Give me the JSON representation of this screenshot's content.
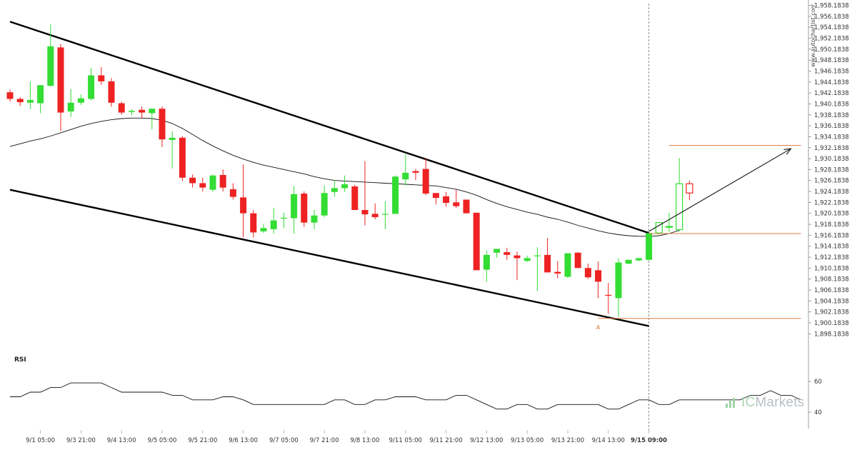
{
  "watermark": "www.autochartist.com",
  "brand": {
    "name": "ICMarkets",
    "prefix": "IC",
    "suffix": "Markets"
  },
  "rsi": {
    "title": "RSI",
    "levels": [
      "60",
      "40"
    ]
  },
  "colors": {
    "up": "#33dd33",
    "down": "#ee2222",
    "pattern_line": "#000000",
    "ma_line": "#111111",
    "level_line": "#e07b39",
    "current_marker": "#777777",
    "projection_arrow": "#111111"
  },
  "chart_data": {
    "type": "candlestick",
    "ylim": [
      1897.1838,
      1958.1838
    ],
    "y_ticks": [
      "1,958.1838",
      "1,956.1838",
      "1,954.1838",
      "1,952.1838",
      "1,950.1838",
      "1,948.1838",
      "1,946.1838",
      "1,944.1838",
      "1,942.1838",
      "1,940.1838",
      "1,938.1838",
      "1,936.1838",
      "1,934.1838",
      "1,932.1838",
      "1,930.1838",
      "1,928.1838",
      "1,926.1838",
      "1,924.1838",
      "1,922.1838",
      "1,920.1838",
      "1,918.1838",
      "1,916.1838",
      "1,914.1838",
      "1,912.1838",
      "1,910.1838",
      "1,908.1838",
      "1,906.1838",
      "1,904.1838",
      "1,902.1838",
      "1,900.1838",
      "1,898.1838"
    ],
    "x_labels": [
      "9/1 05:00",
      "9/3 21:00",
      "9/4 13:00",
      "9/5 05:00",
      "9/5 21:00",
      "9/6 13:00",
      "9/7 05:00",
      "9/7 21:00",
      "9/8 13:00",
      "9/11 05:00",
      "9/11 21:00",
      "9/12 13:00",
      "9/13 05:00",
      "9/13 21:00",
      "9/14 13:00",
      "9/15 09:00"
    ],
    "x_label_index": [
      3,
      7,
      11,
      15,
      19,
      23,
      27,
      31,
      35,
      39,
      43,
      47,
      51,
      55,
      59,
      63
    ],
    "highlight_label": "9/15 09:00",
    "current_index": 63,
    "candles": [
      [
        1942.3,
        1942.8,
        1940.6,
        1941.1
      ],
      [
        1941.1,
        1941.4,
        1939.8,
        1940.5
      ],
      [
        1940.4,
        1944.3,
        1939.2,
        1940.9
      ],
      [
        1940.3,
        1943.6,
        1938.5,
        1943.6
      ],
      [
        1943.5,
        1954.7,
        1943.3,
        1950.7
      ],
      [
        1950.5,
        1951.1,
        1935.2,
        1938.6
      ],
      [
        1938.8,
        1942.9,
        1937.8,
        1940.4
      ],
      [
        1940.4,
        1941.9,
        1940.0,
        1941.2
      ],
      [
        1941.1,
        1946.8,
        1940.8,
        1945.4
      ],
      [
        1945.4,
        1946.9,
        1943.7,
        1944.3
      ],
      [
        1944.3,
        1944.9,
        1939.7,
        1940.4
      ],
      [
        1940.3,
        1940.6,
        1938.2,
        1938.6
      ],
      [
        1938.7,
        1939.2,
        1938.1,
        1938.9
      ],
      [
        1939.1,
        1939.7,
        1937.6,
        1938.6
      ],
      [
        1938.5,
        1939.3,
        1935.5,
        1939.3
      ],
      [
        1939.3,
        1939.7,
        1932.3,
        1933.7
      ],
      [
        1933.6,
        1935.2,
        1928.4,
        1934.0
      ],
      [
        1934.0,
        1934.3,
        1926.1,
        1926.7
      ],
      [
        1926.7,
        1927.3,
        1924.9,
        1925.7
      ],
      [
        1925.7,
        1926.7,
        1924.2,
        1924.9
      ],
      [
        1924.5,
        1927.3,
        1924.1,
        1927.1
      ],
      [
        1927.2,
        1928.2,
        1924.2,
        1924.9
      ],
      [
        1924.6,
        1925.7,
        1922.7,
        1923.2
      ],
      [
        1923.1,
        1929.1,
        1915.8,
        1920.2
      ],
      [
        1920.2,
        1920.8,
        1915.8,
        1916.7
      ],
      [
        1916.9,
        1918.3,
        1916.6,
        1917.5
      ],
      [
        1917.3,
        1921.2,
        1916.5,
        1918.9
      ],
      [
        1919.4,
        1920.3,
        1917.5,
        1919.4
      ],
      [
        1919.3,
        1925.2,
        1916.5,
        1923.7
      ],
      [
        1923.8,
        1924.2,
        1917.7,
        1918.5
      ],
      [
        1918.5,
        1920.8,
        1917.3,
        1919.8
      ],
      [
        1919.8,
        1925.3,
        1919.5,
        1923.9
      ],
      [
        1924.1,
        1926.3,
        1923.2,
        1924.8
      ],
      [
        1924.8,
        1927.1,
        1924.1,
        1925.5
      ],
      [
        1925.1,
        1925.4,
        1920.8,
        1920.8
      ],
      [
        1920.8,
        1929.7,
        1918.0,
        1920.0
      ],
      [
        1920.1,
        1922.0,
        1919.1,
        1919.5
      ],
      [
        1920.1,
        1922.4,
        1917.3,
        1920.1
      ],
      [
        1920.1,
        1927.1,
        1920.1,
        1926.9
      ],
      [
        1926.4,
        1931.0,
        1925.3,
        1927.6
      ],
      [
        1927.9,
        1928.3,
        1926.3,
        1927.6
      ],
      [
        1928.3,
        1930.3,
        1923.5,
        1923.8
      ],
      [
        1923.9,
        1923.9,
        1921.8,
        1923.0
      ],
      [
        1923.3,
        1924.1,
        1921.4,
        1922.1
      ],
      [
        1922.2,
        1924.5,
        1921.2,
        1921.5
      ],
      [
        1922.7,
        1922.7,
        1920.2,
        1920.2
      ],
      [
        1920.3,
        1920.3,
        1909.8,
        1909.8
      ],
      [
        1909.9,
        1913.4,
        1907.7,
        1912.6
      ],
      [
        1913.0,
        1913.7,
        1912.1,
        1913.7
      ],
      [
        1913.1,
        1913.9,
        1911.7,
        1912.6
      ],
      [
        1912.5,
        1913.2,
        1908.0,
        1912.0
      ],
      [
        1911.5,
        1912.5,
        1911.3,
        1912.0
      ],
      [
        1912.5,
        1914.0,
        1906.0,
        1912.5
      ],
      [
        1912.6,
        1915.7,
        1909.4,
        1909.4
      ],
      [
        1909.5,
        1911.5,
        1908.3,
        1909.2
      ],
      [
        1908.6,
        1912.9,
        1908.4,
        1912.9
      ],
      [
        1913.0,
        1913.1,
        1910.2,
        1910.2
      ],
      [
        1910.2,
        1911.0,
        1908.2,
        1908.5
      ],
      [
        1909.8,
        1911.4,
        1904.7,
        1907.7
      ],
      [
        1905.3,
        1907.5,
        1901.8,
        1905.2
      ],
      [
        1904.7,
        1912.0,
        1901.3,
        1911.2
      ],
      [
        1911.0,
        1911.7,
        1910.9,
        1911.7
      ],
      [
        1911.6,
        1912.0,
        1911.4,
        1912.0
      ],
      [
        1911.7,
        1916.6,
        1911.6,
        1916.6
      ],
      [
        1916.6,
        1918.5,
        1916.4,
        1918.5
      ],
      [
        1917.8,
        1920.3,
        1916.8,
        1917.8
      ],
      [
        1917.2,
        1930.3,
        1916.9,
        1925.6
      ],
      [
        1925.6,
        1926.2,
        1922.6,
        1923.9
      ]
    ],
    "projected_from_index": 64,
    "moving_average": [
      1932.4,
      1932.9,
      1933.4,
      1933.8,
      1934.3,
      1934.9,
      1935.5,
      1936.1,
      1936.6,
      1937.0,
      1937.3,
      1937.5,
      1937.6,
      1937.6,
      1937.5,
      1937.2,
      1936.6,
      1935.7,
      1934.6,
      1933.5,
      1932.5,
      1931.6,
      1930.8,
      1930.1,
      1929.5,
      1929.0,
      1928.6,
      1928.2,
      1927.8,
      1927.4,
      1926.9,
      1926.5,
      1926.2,
      1926.1,
      1926.0,
      1925.9,
      1925.8,
      1925.7,
      1925.6,
      1925.5,
      1925.4,
      1925.3,
      1925.2,
      1924.9,
      1924.6,
      1924.1,
      1923.5,
      1922.7,
      1922.0,
      1921.4,
      1920.9,
      1920.4,
      1920.0,
      1919.5,
      1919.1,
      1918.6,
      1918.0,
      1917.5,
      1917.0,
      1916.6,
      1916.3,
      1916.1,
      1916.0,
      1916.0,
      1916.1,
      1916.5,
      1917.1
    ],
    "channel": {
      "upper": {
        "from": [
          0,
          1955.2
        ],
        "to": [
          63,
          1916.6
        ]
      },
      "lower": {
        "from": [
          0,
          1924.5
        ],
        "to": [
          63,
          1899.6
        ]
      }
    },
    "levels": [
      {
        "from_index": 58,
        "to_index": 78,
        "value": 1901.0
      },
      {
        "from_index": 63,
        "to_index": 78,
        "value": 1916.5
      },
      {
        "from_index": 65,
        "to_index": 78,
        "value": 1932.6
      }
    ],
    "arrow": {
      "from": [
        63,
        1916.9
      ],
      "to": [
        77,
        1932.0
      ]
    },
    "point_label": {
      "text": "A",
      "index": 58,
      "value": 1900.2
    },
    "rsi_values": [
      50,
      50,
      53,
      53,
      56,
      56,
      59,
      59,
      59,
      59,
      56,
      53,
      53,
      53,
      53,
      53,
      51,
      51,
      48,
      48,
      48,
      50,
      50,
      48,
      45,
      45,
      45,
      45,
      45,
      45,
      45,
      45,
      48,
      48,
      45,
      45,
      48,
      48,
      50,
      50,
      50,
      48,
      48,
      48,
      51,
      51,
      48,
      45,
      42,
      42,
      45,
      45,
      42,
      42,
      45,
      45,
      45,
      45,
      45,
      42,
      42,
      45,
      48,
      48,
      45,
      45,
      48,
      48,
      48,
      48,
      48,
      48,
      48,
      51,
      51,
      54,
      51,
      51,
      48
    ]
  }
}
